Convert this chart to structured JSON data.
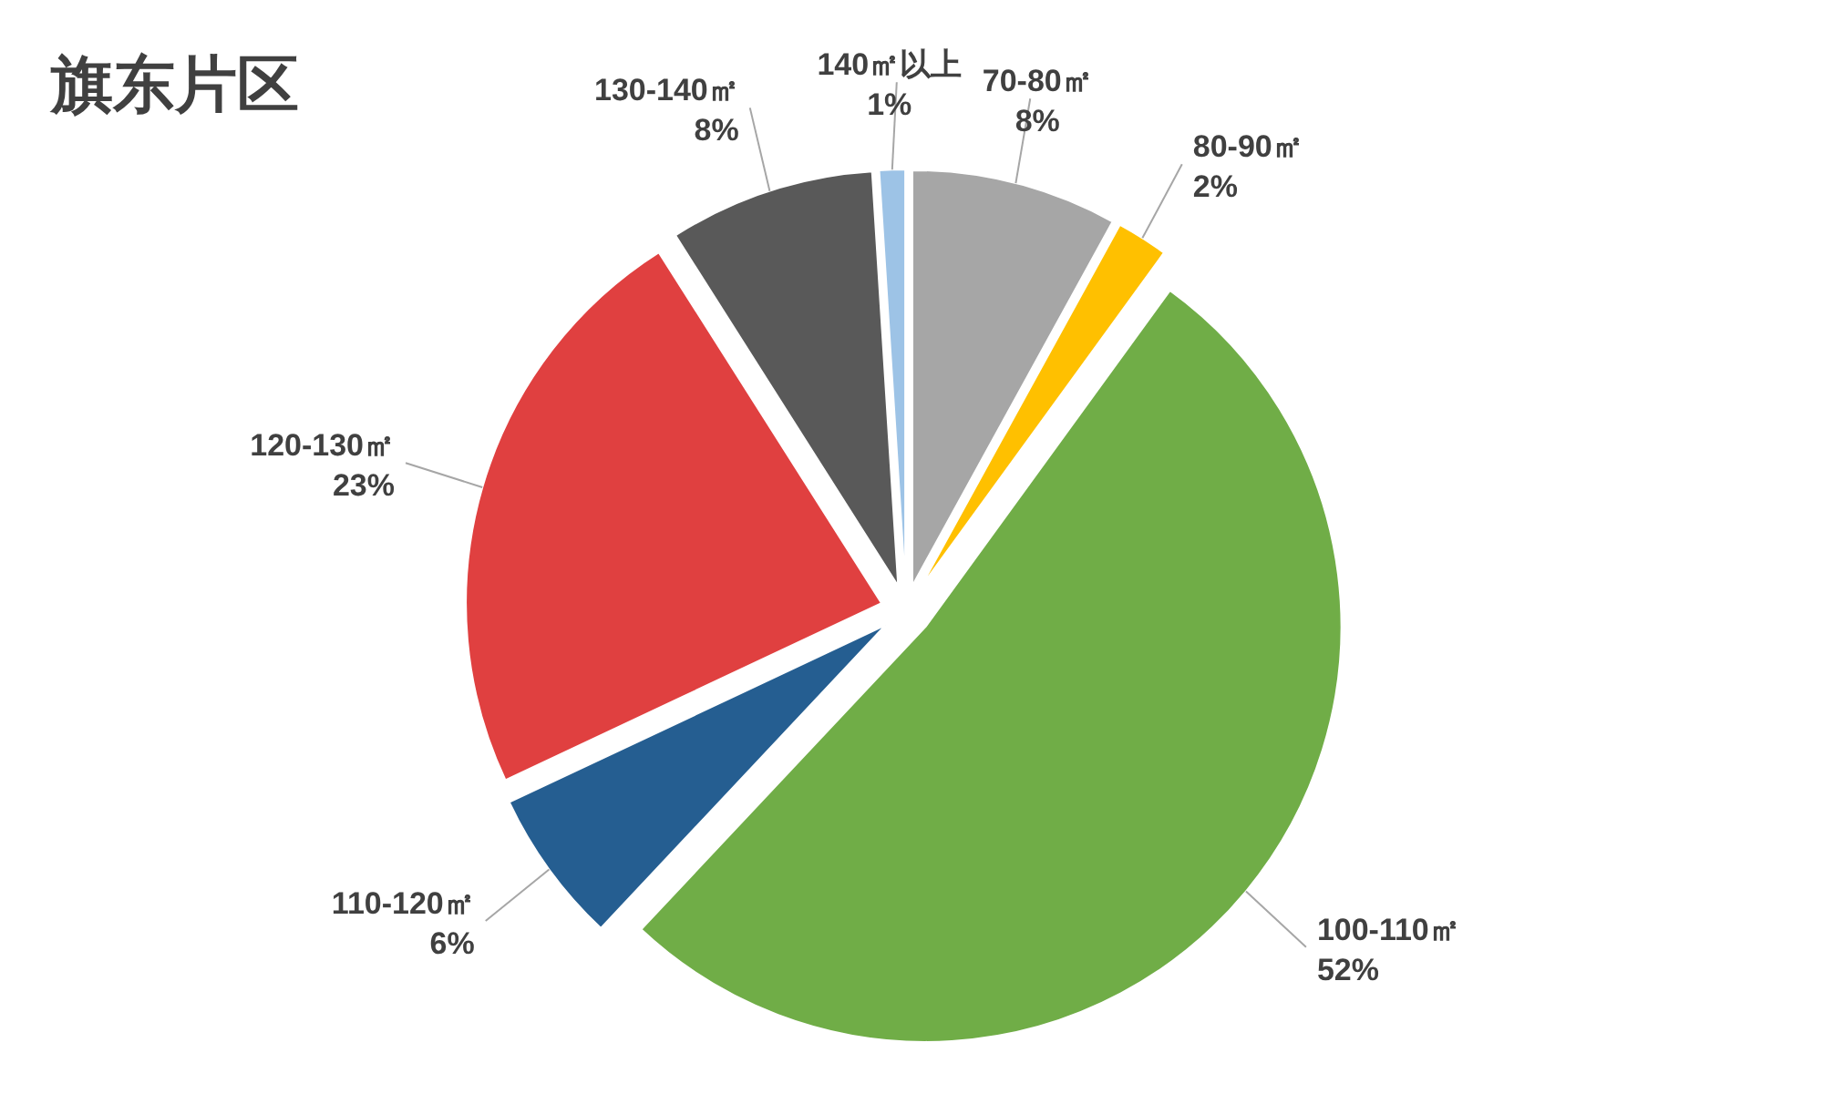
{
  "chart_data": {
    "type": "pie",
    "title": "旗东片区",
    "categories": [
      "70-80㎡",
      "80-90㎡",
      "100-110㎡",
      "110-120㎡",
      "120-130㎡",
      "130-140㎡",
      "140㎡以上"
    ],
    "values": [
      8,
      2,
      52,
      6,
      23,
      8,
      1
    ],
    "value_labels": [
      "8%",
      "2%",
      "52%",
      "6%",
      "23%",
      "8%",
      "1%"
    ],
    "colors": [
      "#a6a6a6",
      "#ffc000",
      "#70ad47",
      "#255e91",
      "#e04040",
      "#595959",
      "#9dc3e6"
    ]
  }
}
